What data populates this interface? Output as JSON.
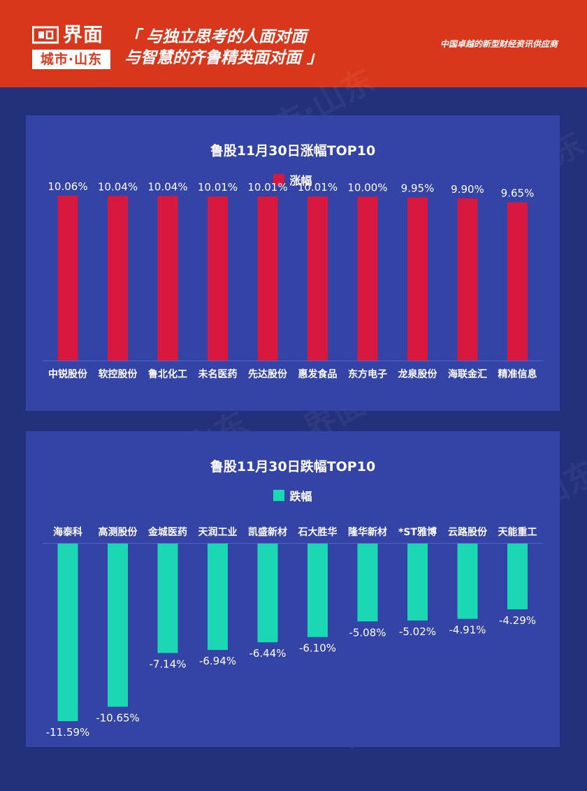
{
  "header": {
    "logo_name": "界面",
    "logo_sub": "城市·山东",
    "slogan_line1": "「 与独立思考的人面对面",
    "slogan_line2": "与智慧的齐鲁精英面对面 」",
    "tagline": "中国卓越的新型财经资讯供应商"
  },
  "watermark_text": "界面 城市·山东",
  "colors": {
    "rise": "#d8183f",
    "fall": "#1bd7b4",
    "background": "#23307a",
    "panel": "#3443a6",
    "header": "#d9371c"
  },
  "chart_data": [
    {
      "type": "bar",
      "title": "鲁股11月30日涨幅TOP10",
      "legend": "涨幅",
      "legend_position": "top",
      "categories": [
        "中锐股份",
        "软控股份",
        "鲁北化工",
        "未名医药",
        "先达股份",
        "惠发食品",
        "东方电子",
        "龙泉股份",
        "海联金汇",
        "精准信息"
      ],
      "values": [
        10.06,
        10.04,
        10.04,
        10.01,
        10.01,
        10.01,
        10.0,
        9.95,
        9.9,
        9.65
      ],
      "labels": [
        "10.06%",
        "10.04%",
        "10.04%",
        "10.01%",
        "10.01%",
        "10.01%",
        "10.00%",
        "9.95%",
        "9.90%",
        "9.65%"
      ],
      "unit": "%",
      "grid": false
    },
    {
      "type": "bar",
      "title": "鲁股11月30日跌幅TOP10",
      "legend": "跌幅",
      "legend_position": "top",
      "categories": [
        "海泰科",
        "高测股份",
        "金城医药",
        "天润工业",
        "凯盛新材",
        "石大胜华",
        "隆华新材",
        "*ST雅博",
        "云路股份",
        "天能重工"
      ],
      "values": [
        -11.59,
        -10.65,
        -7.14,
        -6.94,
        -6.44,
        -6.1,
        -5.08,
        -5.02,
        -4.91,
        -4.29
      ],
      "labels": [
        "-11.59%",
        "-10.65%",
        "-7.14%",
        "-6.94%",
        "-6.44%",
        "-6.10%",
        "-5.08%",
        "-5.02%",
        "-4.91%",
        "-4.29%"
      ],
      "unit": "%",
      "grid": false
    }
  ]
}
